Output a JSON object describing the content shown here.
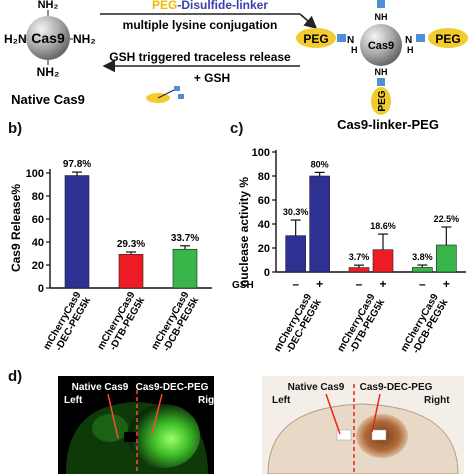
{
  "top_scheme": {
    "native": {
      "center": "Cas9",
      "left": "H₂N",
      "right": "NH₂",
      "bottom": "NH₂",
      "top": "NH₂",
      "caption": "Native Cas9"
    },
    "conjugate": {
      "center": "Cas9",
      "peg": "PEG",
      "nh": "NH",
      "h": "H",
      "n": "N",
      "caption": "Cas9-linker-PEG"
    },
    "arrow_top_label_peg": "PEG",
    "arrow_top_label_rest": "-Disulfide-linker",
    "arrow_top_sub": "multiple lysine conjugation",
    "arrow_bottom_label": "GSH triggered traceless release",
    "arrow_bottom_sub": "+ GSH",
    "colors": {
      "peg": "#f2cc2e",
      "linker": "#4f8fd6",
      "disulfide_text": "#3b3fa8",
      "sphere": "#9a9a9a"
    }
  },
  "panel_b": {
    "letter": "b)",
    "chart_data": {
      "type": "bar",
      "categories": [
        "mCherryCas9\n-DEC-PEG5k",
        "mCherryCas9\n-DTB-PEG5k",
        "mCherryCas9\n-DCB-PEG5k"
      ],
      "category_lines": [
        [
          "mCherryCas9",
          "-DEC-PEG5k"
        ],
        [
          "mCherryCas9",
          "-DTB-PEG5k"
        ],
        [
          "mCherryCas9",
          "-DCB-PEG5k"
        ]
      ],
      "values": [
        97.8,
        29.3,
        33.7
      ],
      "errors": [
        3,
        2,
        3
      ],
      "data_labels": [
        "97.8%",
        "29.3%",
        "33.7%"
      ],
      "colors": [
        "#2e3192",
        "#ed1c24",
        "#39b54a"
      ],
      "ylabel": "Cas9 Release%",
      "ylim": [
        0,
        120
      ],
      "yticks": [
        "0",
        "20",
        "40",
        "60",
        "80",
        "100"
      ],
      "ytick_values": [
        0,
        20,
        40,
        60,
        80,
        100
      ]
    }
  },
  "panel_c": {
    "letter": "c)",
    "chart_data": {
      "type": "bar",
      "groups": [
        [
          "mCherryCas9",
          "-DEC-PEG5k"
        ],
        [
          "mCherryCas9",
          "-DTB-PEG5k"
        ],
        [
          "mCherryCas9",
          "-DCB-PEG5k"
        ]
      ],
      "gsh_label": "GSH",
      "gsh_states": [
        "–",
        "+"
      ],
      "values": [
        [
          30.3,
          80
        ],
        [
          3.7,
          18.6
        ],
        [
          3.8,
          22.5
        ]
      ],
      "errors": [
        [
          13,
          3
        ],
        [
          2,
          13
        ],
        [
          2,
          15
        ]
      ],
      "data_labels": [
        [
          "30.3%",
          "80%"
        ],
        [
          "3.7%",
          "18.6%"
        ],
        [
          "3.8%",
          "22.5%"
        ]
      ],
      "colors": [
        "#2e3192",
        "#ed1c24",
        "#39b54a"
      ],
      "ylabel": "nuclease activity %",
      "ylim": [
        0,
        100
      ],
      "yticks": [
        "0",
        "20",
        "40",
        "60",
        "80",
        "100"
      ],
      "ytick_values": [
        0,
        20,
        40,
        60,
        80,
        100
      ]
    }
  },
  "panel_d": {
    "letter": "d)",
    "fluorescence": {
      "left": "Left",
      "right": "Right",
      "native": "Native Cas9",
      "cas9dec": "Cas9-DEC-PEG"
    },
    "histology": {
      "left": "Left",
      "right": "Right",
      "native": "Native Cas9",
      "cas9dec": "Cas9-DEC-PEG"
    }
  }
}
